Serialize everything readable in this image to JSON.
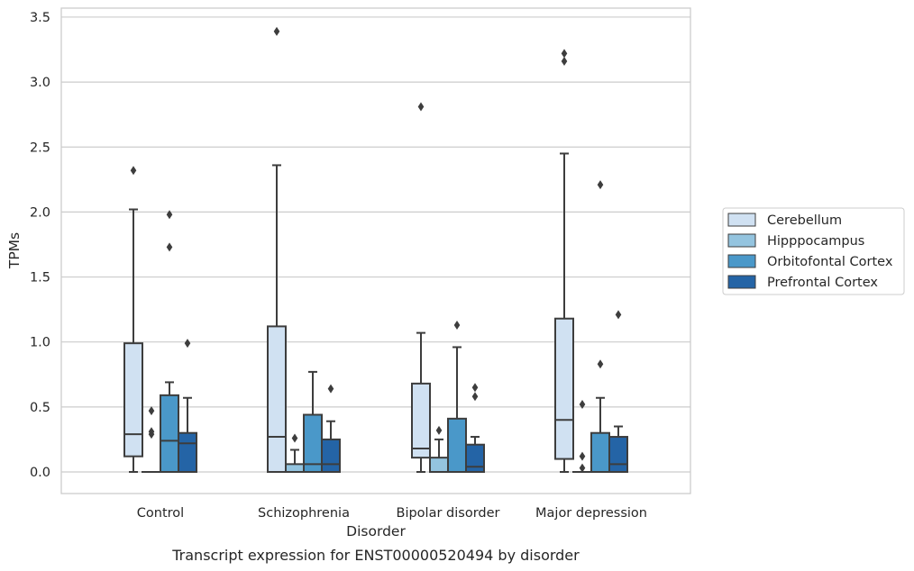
{
  "chart_data": {
    "type": "boxplot",
    "title": "",
    "caption": "Transcript expression for ENST00000520494 by disorder",
    "xlabel": "Disorder",
    "ylabel": "TPMs",
    "ylim": [
      -0.165,
      3.57
    ],
    "yticks": [
      "0.0",
      "0.5",
      "1.0",
      "1.5",
      "2.0",
      "2.5",
      "3.0",
      "3.5"
    ],
    "ytick_values": [
      0,
      0.5,
      1.0,
      1.5,
      2.0,
      2.5,
      3.0,
      3.5
    ],
    "grid": true,
    "legend_placement": "right",
    "categories": [
      "Control",
      "Schizophrenia",
      "Bipolar disorder",
      "Major depression"
    ],
    "series": [
      {
        "name": "Cerebellum",
        "color": "#d0e1f2",
        "boxes": [
          {
            "whislo": 0.0,
            "q1": 0.12,
            "med": 0.29,
            "q3": 0.99,
            "whishi": 2.02,
            "fliers": [
              2.32
            ]
          },
          {
            "whislo": 0.0,
            "q1": 0.0,
            "med": 0.27,
            "q3": 1.12,
            "whishi": 2.36,
            "fliers": [
              3.39
            ]
          },
          {
            "whislo": 0.0,
            "q1": 0.11,
            "med": 0.18,
            "q3": 0.68,
            "whishi": 1.07,
            "fliers": [
              2.81
            ]
          },
          {
            "whislo": 0.0,
            "q1": 0.1,
            "med": 0.4,
            "q3": 1.18,
            "whishi": 2.45,
            "fliers": [
              3.16,
              3.22
            ]
          }
        ]
      },
      {
        "name": "Hipppocampus",
        "color": "#94c4df",
        "boxes": [
          {
            "whislo": 0.0,
            "q1": 0.0,
            "med": 0.0,
            "q3": 0.0,
            "whishi": 0.0,
            "fliers": [
              0.29,
              0.31,
              0.47
            ]
          },
          {
            "whislo": 0.0,
            "q1": 0.0,
            "med": 0.0,
            "q3": 0.06,
            "whishi": 0.17,
            "fliers": [
              0.26
            ]
          },
          {
            "whislo": 0.0,
            "q1": 0.0,
            "med": 0.0,
            "q3": 0.11,
            "whishi": 0.25,
            "fliers": [
              0.32
            ]
          },
          {
            "whislo": 0.0,
            "q1": 0.0,
            "med": 0.0,
            "q3": 0.0,
            "whishi": 0.0,
            "fliers": [
              0.03,
              0.12,
              0.52
            ]
          }
        ]
      },
      {
        "name": "Orbitofontal Cortex",
        "color": "#4a98c9",
        "boxes": [
          {
            "whislo": 0.0,
            "q1": 0.0,
            "med": 0.24,
            "q3": 0.59,
            "whishi": 0.69,
            "fliers": [
              1.73,
              1.98
            ]
          },
          {
            "whislo": 0.0,
            "q1": 0.0,
            "med": 0.06,
            "q3": 0.44,
            "whishi": 0.77,
            "fliers": []
          },
          {
            "whislo": 0.0,
            "q1": 0.0,
            "med": 0.0,
            "q3": 0.41,
            "whishi": 0.96,
            "fliers": [
              1.13
            ]
          },
          {
            "whislo": 0.0,
            "q1": 0.0,
            "med": 0.0,
            "q3": 0.3,
            "whishi": 0.57,
            "fliers": [
              0.83,
              2.21
            ]
          }
        ]
      },
      {
        "name": "Prefrontal Cortex",
        "color": "#2464a6",
        "boxes": [
          {
            "whislo": 0.0,
            "q1": 0.0,
            "med": 0.22,
            "q3": 0.3,
            "whishi": 0.57,
            "fliers": [
              0.99
            ]
          },
          {
            "whislo": 0.0,
            "q1": 0.0,
            "med": 0.06,
            "q3": 0.25,
            "whishi": 0.39,
            "fliers": [
              0.64
            ]
          },
          {
            "whislo": 0.0,
            "q1": 0.0,
            "med": 0.04,
            "q3": 0.21,
            "whishi": 0.27,
            "fliers": [
              0.58,
              0.65
            ]
          },
          {
            "whislo": 0.0,
            "q1": 0.0,
            "med": 0.06,
            "q3": 0.27,
            "whishi": 0.35,
            "fliers": [
              1.21
            ]
          }
        ]
      }
    ]
  }
}
